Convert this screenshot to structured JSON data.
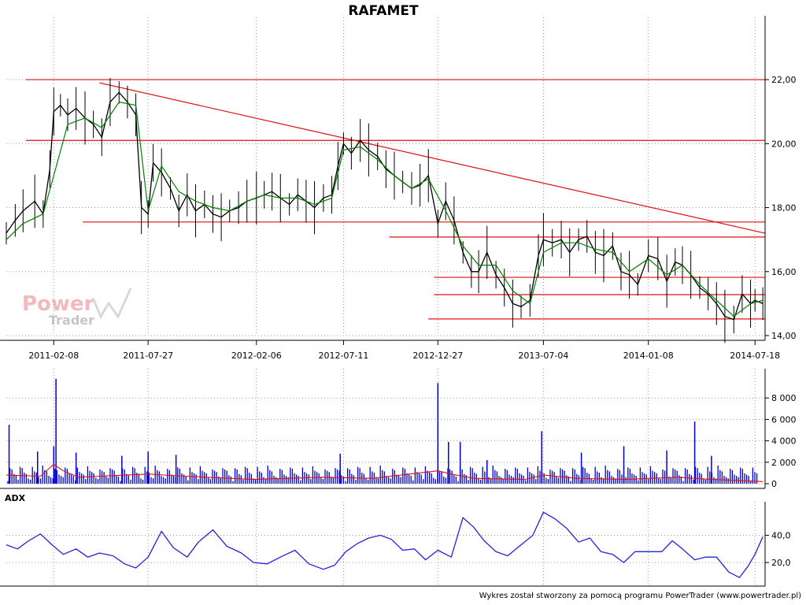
{
  "title": "RAFAMET",
  "footer": "Wykres został stworzony za pomocą programu PowerTrader (www.powertrader.pl)",
  "watermark": {
    "line1": "Power",
    "line2": "Trader"
  },
  "colors": {
    "candle": "#000000",
    "ma": "#008000",
    "level": "#e01010",
    "volume": "#0000cc",
    "volume_ma": "#e01010",
    "adx": "#2222dd"
  },
  "chart_data": [
    {
      "type": "line",
      "panel": "price",
      "title": "RAFAMET",
      "x_tick_labels": [
        "2011-02-08",
        "2011-07-27",
        "2012-02-06",
        "2012-07-11",
        "2012-12-27",
        "2013-07-04",
        "2014-01-08",
        "2014-07-18"
      ],
      "y_tick_labels": [
        "22,00",
        "20,00",
        "18,00",
        "16,00",
        "14,00"
      ],
      "y_ticks": [
        22,
        20,
        18,
        16,
        14
      ],
      "x_range": [
        "2010-11-15",
        "2014-08-05"
      ],
      "ylim": [
        14.0,
        23.75
      ],
      "grid": true,
      "series": [
        {
          "style": "close",
          "x": [
            "2010-11-15",
            "2010-12-01",
            "2010-12-15",
            "2011-01-05",
            "2011-01-20",
            "2011-02-01",
            "2011-02-08",
            "2011-02-20",
            "2011-03-05",
            "2011-03-20",
            "2011-04-05",
            "2011-04-20",
            "2011-05-05",
            "2011-05-20",
            "2011-06-05",
            "2011-06-20",
            "2011-07-05",
            "2011-07-15",
            "2011-07-27",
            "2011-08-05",
            "2011-08-20",
            "2011-09-05",
            "2011-09-20",
            "2011-10-05",
            "2011-10-20",
            "2011-11-05",
            "2011-11-20",
            "2011-12-05",
            "2011-12-20",
            "2012-01-05",
            "2012-01-20",
            "2012-02-06",
            "2012-02-20",
            "2012-03-05",
            "2012-03-20",
            "2012-04-05",
            "2012-04-20",
            "2012-05-05",
            "2012-05-20",
            "2012-06-05",
            "2012-06-20",
            "2012-07-01",
            "2012-07-11",
            "2012-07-25",
            "2012-08-10",
            "2012-08-25",
            "2012-09-10",
            "2012-09-25",
            "2012-10-10",
            "2012-10-25",
            "2012-11-10",
            "2012-11-25",
            "2012-12-10",
            "2012-12-27",
            "2013-01-10",
            "2013-01-25",
            "2013-02-10",
            "2013-02-25",
            "2013-03-10",
            "2013-03-25",
            "2013-04-10",
            "2013-04-25",
            "2013-05-10",
            "2013-05-25",
            "2013-06-10",
            "2013-06-25",
            "2013-07-04",
            "2013-07-20",
            "2013-08-05",
            "2013-08-20",
            "2013-09-05",
            "2013-09-20",
            "2013-10-05",
            "2013-10-20",
            "2013-11-05",
            "2013-11-20",
            "2013-12-05",
            "2013-12-20",
            "2014-01-08",
            "2014-01-25",
            "2014-02-10",
            "2014-02-25",
            "2014-03-10",
            "2014-03-25",
            "2014-04-10",
            "2014-04-25",
            "2014-05-10",
            "2014-05-25",
            "2014-06-10",
            "2014-06-25",
            "2014-07-10",
            "2014-07-18",
            "2014-08-01"
          ],
          "values": [
            17.2,
            17.6,
            17.9,
            18.2,
            17.8,
            19.2,
            21.0,
            21.2,
            20.9,
            21.1,
            20.8,
            20.6,
            20.2,
            21.3,
            21.6,
            21.3,
            20.9,
            18.0,
            17.8,
            19.4,
            19.1,
            18.6,
            17.9,
            18.4,
            17.9,
            18.1,
            17.8,
            17.7,
            17.9,
            18.0,
            18.2,
            18.3,
            18.4,
            18.5,
            18.3,
            18.1,
            18.4,
            18.2,
            18.0,
            18.3,
            18.4,
            19.3,
            20.0,
            19.7,
            20.1,
            19.8,
            19.6,
            19.2,
            19.0,
            18.8,
            18.6,
            18.7,
            19.0,
            17.5,
            18.2,
            17.6,
            16.6,
            16.0,
            16.0,
            16.6,
            15.9,
            15.5,
            15.0,
            14.9,
            15.1,
            16.5,
            17.0,
            16.9,
            17.0,
            16.6,
            17.0,
            17.1,
            16.6,
            16.5,
            16.8,
            16.0,
            15.9,
            15.6,
            16.5,
            16.4,
            15.7,
            16.3,
            16.2,
            15.9,
            15.5,
            15.3,
            15.0,
            14.6,
            14.5,
            15.3,
            15.0,
            15.1,
            15.0
          ]
        },
        {
          "style": "moving_average",
          "x": [
            "2010-11-15",
            "2010-12-15",
            "2011-01-20",
            "2011-02-08",
            "2011-03-05",
            "2011-04-05",
            "2011-05-05",
            "2011-06-05",
            "2011-07-05",
            "2011-07-27",
            "2011-08-20",
            "2011-09-20",
            "2011-10-20",
            "2011-11-20",
            "2011-12-20",
            "2012-01-20",
            "2012-02-20",
            "2012-03-20",
            "2012-04-20",
            "2012-05-20",
            "2012-06-20",
            "2012-07-11",
            "2012-08-10",
            "2012-09-10",
            "2012-10-10",
            "2012-11-10",
            "2012-12-10",
            "2013-01-10",
            "2013-02-10",
            "2013-03-10",
            "2013-04-10",
            "2013-05-10",
            "2013-06-10",
            "2013-07-04",
            "2013-08-05",
            "2013-09-05",
            "2013-10-05",
            "2013-11-05",
            "2013-12-05",
            "2014-01-08",
            "2014-02-10",
            "2014-03-10",
            "2014-04-10",
            "2014-05-10",
            "2014-06-10",
            "2014-07-10",
            "2014-08-01"
          ],
          "values": [
            17.0,
            17.5,
            17.8,
            19.0,
            20.6,
            20.8,
            20.5,
            21.3,
            21.2,
            17.9,
            19.3,
            18.5,
            18.2,
            18.0,
            17.9,
            18.2,
            18.4,
            18.3,
            18.3,
            18.1,
            18.3,
            19.8,
            19.9,
            19.5,
            19.0,
            18.6,
            18.9,
            17.9,
            16.8,
            16.2,
            16.2,
            15.4,
            15.0,
            16.6,
            16.9,
            16.9,
            16.7,
            16.6,
            16.0,
            16.4,
            15.9,
            16.2,
            15.6,
            15.1,
            14.6,
            15.0,
            15.1
          ]
        }
      ],
      "horizontal_levels": [
        {
          "y": 22.0,
          "from": "2010-12-20",
          "to": "2014-08-05"
        },
        {
          "y": 20.1,
          "from": "2010-12-20",
          "to": "2014-08-05"
        },
        {
          "y": 17.55,
          "from": "2011-04-01",
          "to": "2014-08-05"
        },
        {
          "y": 17.08,
          "from": "2012-10-01",
          "to": "2014-08-05"
        },
        {
          "y": 15.82,
          "from": "2012-12-20",
          "to": "2014-08-05"
        },
        {
          "y": 15.28,
          "from": "2012-12-20",
          "to": "2014-08-05"
        },
        {
          "y": 14.52,
          "from": "2012-12-10",
          "to": "2014-08-05"
        }
      ],
      "trendline": {
        "from": [
          "2011-05-01",
          21.9
        ],
        "to": [
          "2014-08-05",
          17.2
        ]
      }
    },
    {
      "type": "bar",
      "panel": "volume",
      "y_tick_labels": [
        "8 000",
        "6 000",
        "4 000",
        "2 000",
        "0"
      ],
      "y_ticks": [
        8000,
        6000,
        4000,
        2000,
        0
      ],
      "ylim": [
        0,
        10000
      ],
      "spikes": {
        "x": [
          "2010-11-20",
          "2011-01-10",
          "2011-02-08",
          "2011-02-12",
          "2011-03-20",
          "2011-06-10",
          "2011-07-27",
          "2011-09-15",
          "2012-07-05",
          "2012-12-27",
          "2013-01-15",
          "2013-02-05",
          "2013-03-25",
          "2013-07-01",
          "2013-09-10",
          "2013-11-25",
          "2014-02-10",
          "2014-04-01",
          "2014-05-01"
        ],
        "values": [
          5500,
          3000,
          3500,
          9800,
          2900,
          2600,
          3000,
          2700,
          2800,
          9400,
          3900,
          3900,
          2200,
          4900,
          2900,
          3500,
          3100,
          5800,
          2600
        ]
      },
      "moving_average": {
        "x": [
          "2010-11-15",
          "2011-01-15",
          "2011-02-08",
          "2011-02-25",
          "2011-03-25",
          "2011-05-01",
          "2011-07-27",
          "2011-10-01",
          "2012-02-01",
          "2012-06-01",
          "2012-09-01",
          "2012-12-27",
          "2013-01-20",
          "2013-03-01",
          "2013-06-01",
          "2013-07-05",
          "2013-09-01",
          "2013-12-01",
          "2014-03-01",
          "2014-05-01",
          "2014-08-01"
        ],
        "values": [
          800,
          700,
          1800,
          1200,
          600,
          700,
          900,
          700,
          400,
          600,
          500,
          1200,
          900,
          500,
          400,
          800,
          500,
          400,
          600,
          400,
          200
        ]
      }
    },
    {
      "type": "line",
      "panel": "adx",
      "label": "ADX",
      "y_tick_labels": [
        "40,0",
        "20,0"
      ],
      "y_ticks": [
        40,
        20
      ],
      "ylim": [
        5,
        60
      ],
      "x": [
        "2010-11-15",
        "2010-12-05",
        "2010-12-25",
        "2011-01-15",
        "2011-02-05",
        "2011-02-25",
        "2011-03-20",
        "2011-04-10",
        "2011-05-01",
        "2011-05-25",
        "2011-06-15",
        "2011-07-05",
        "2011-07-27",
        "2011-08-20",
        "2011-09-10",
        "2011-10-05",
        "2011-10-25",
        "2011-11-20",
        "2011-12-15",
        "2012-01-10",
        "2012-02-01",
        "2012-02-25",
        "2012-03-20",
        "2012-04-15",
        "2012-05-10",
        "2012-06-05",
        "2012-06-25",
        "2012-07-15",
        "2012-08-05",
        "2012-08-25",
        "2012-09-15",
        "2012-10-05",
        "2012-10-25",
        "2012-11-15",
        "2012-12-05",
        "2012-12-27",
        "2013-01-20",
        "2013-02-10",
        "2013-03-01",
        "2013-03-20",
        "2013-04-10",
        "2013-05-01",
        "2013-05-25",
        "2013-06-15",
        "2013-07-04",
        "2013-07-25",
        "2013-08-15",
        "2013-09-05",
        "2013-09-25",
        "2013-10-15",
        "2013-11-05",
        "2013-11-25",
        "2013-12-15",
        "2014-01-08",
        "2014-02-01",
        "2014-02-20",
        "2014-03-10",
        "2014-04-01",
        "2014-04-20",
        "2014-05-10",
        "2014-06-01",
        "2014-06-20",
        "2014-07-05",
        "2014-07-18",
        "2014-08-01"
      ],
      "values": [
        33,
        30,
        36,
        41,
        33,
        26,
        30,
        24,
        27,
        25,
        19,
        16,
        24,
        43,
        31,
        24,
        35,
        44,
        32,
        27,
        20,
        19,
        24,
        29,
        19,
        15,
        18,
        28,
        34,
        38,
        40,
        37,
        29,
        30,
        22,
        29,
        24,
        53,
        46,
        36,
        28,
        25,
        33,
        40,
        57,
        52,
        45,
        35,
        38,
        28,
        26,
        20,
        28,
        28,
        28,
        36,
        30,
        22,
        24,
        24,
        13,
        9,
        17,
        26,
        39
      ]
    }
  ]
}
